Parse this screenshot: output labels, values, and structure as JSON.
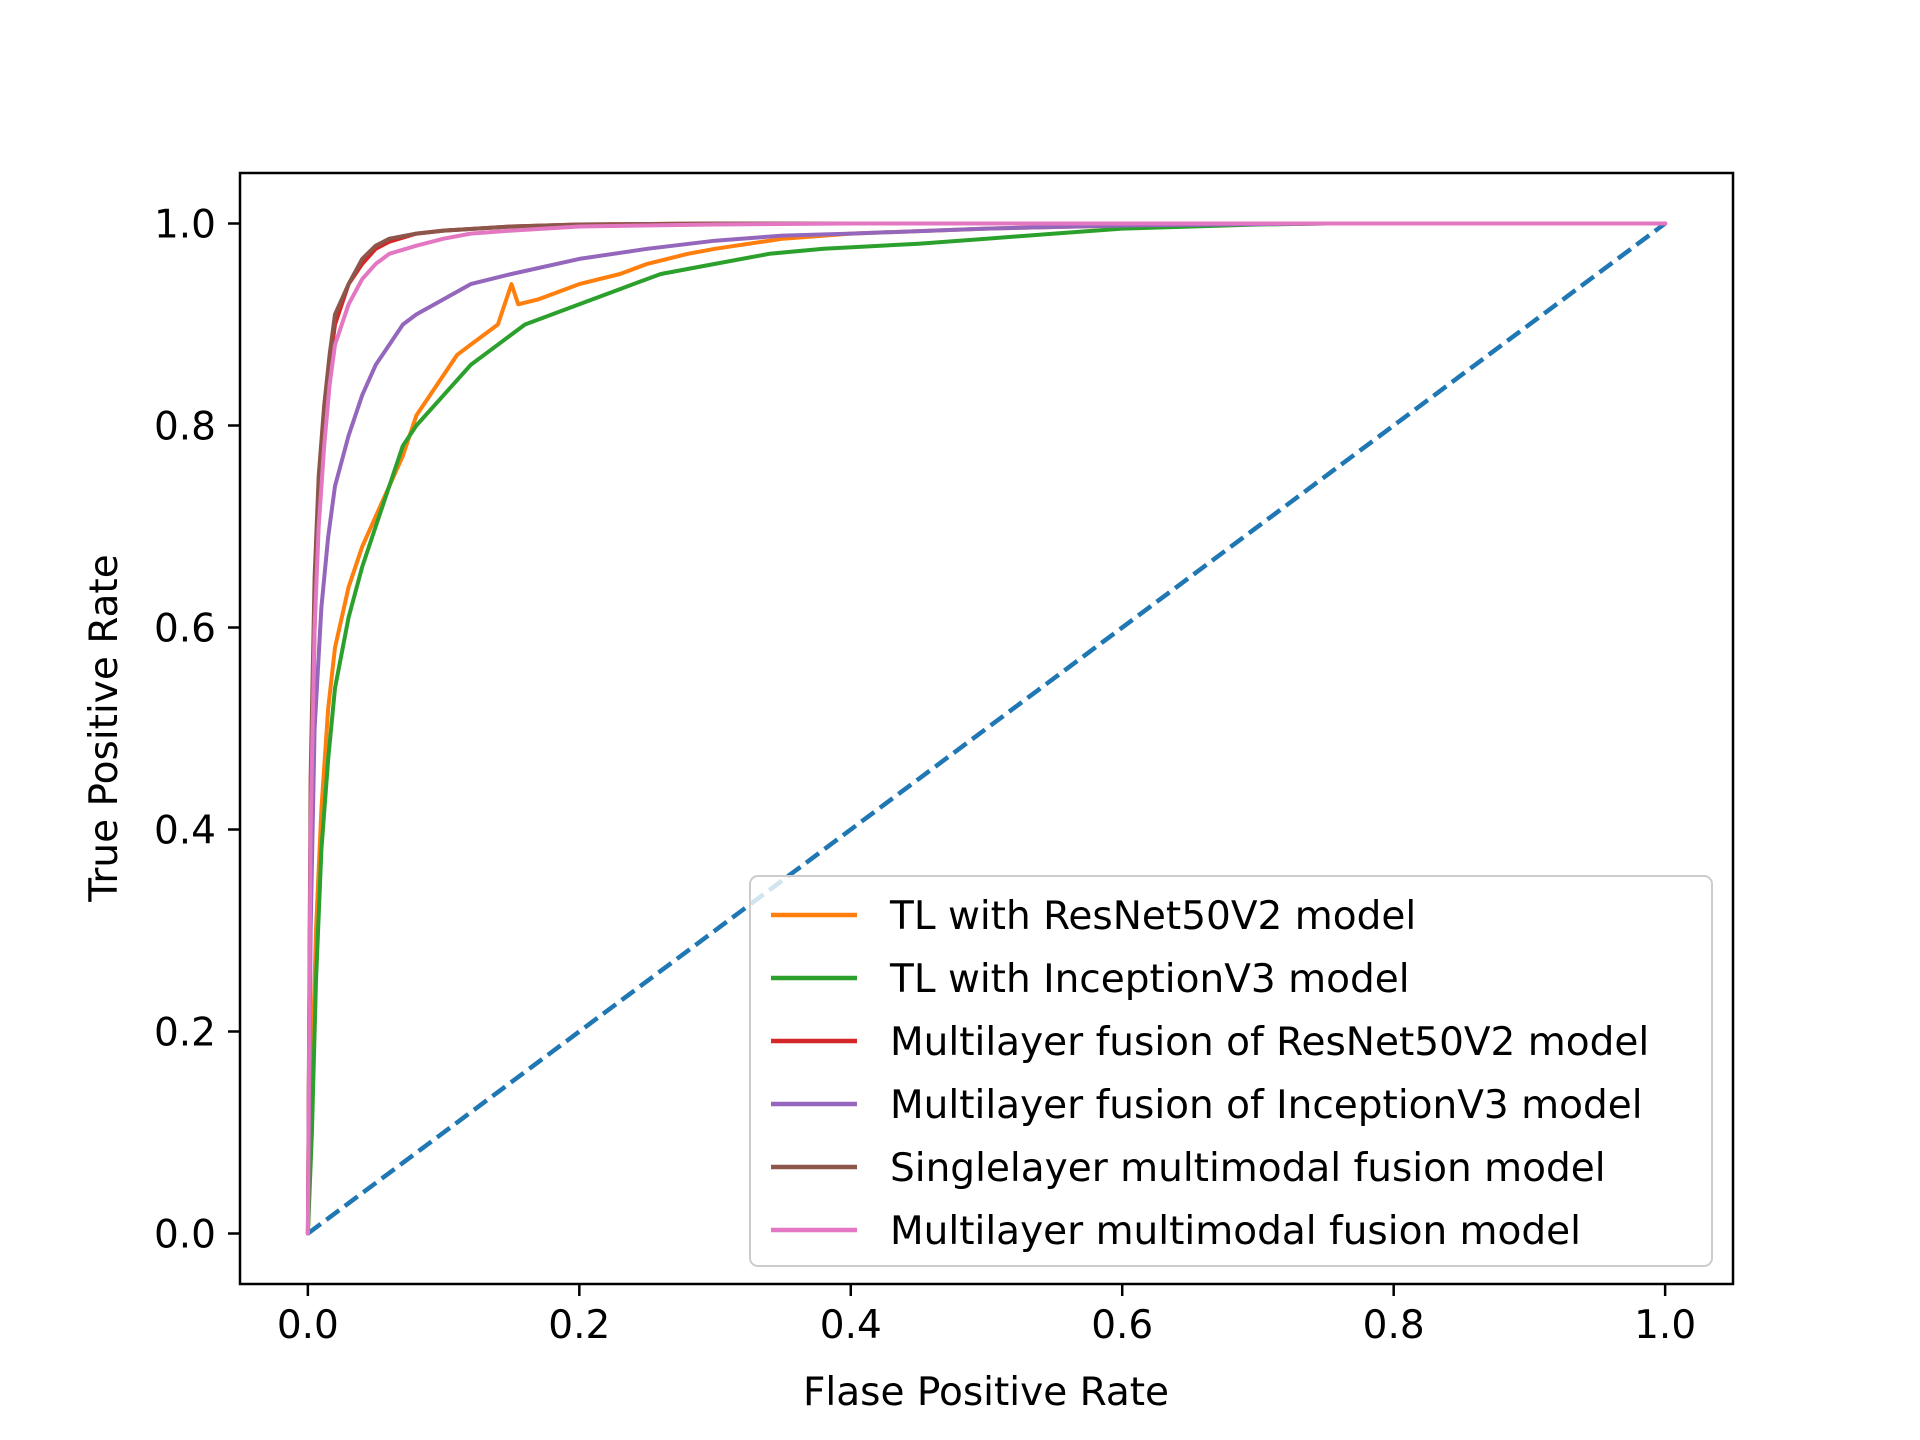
{
  "chart_data": {
    "type": "line",
    "title": "",
    "xlabel": "Flase Positive Rate",
    "ylabel": "True Positive Rate",
    "xlim": [
      -0.05,
      1.05
    ],
    "ylim": [
      -0.05,
      1.05
    ],
    "x_ticks": [
      0.0,
      0.2,
      0.4,
      0.6,
      0.8,
      1.0
    ],
    "y_ticks": [
      0.0,
      0.2,
      0.4,
      0.6,
      0.8,
      1.0
    ],
    "x_tick_labels": [
      "0.0",
      "0.2",
      "0.4",
      "0.6",
      "0.8",
      "1.0"
    ],
    "y_tick_labels": [
      "0.0",
      "0.2",
      "0.4",
      "0.6",
      "0.8",
      "1.0"
    ],
    "grid": false,
    "legend_position": "lower-right",
    "series": [
      {
        "name": "TL with ResNet50V2 model",
        "color": "#ff7f0e",
        "style": "solid",
        "points": [
          [
            0,
            0
          ],
          [
            0.003,
            0.15
          ],
          [
            0.006,
            0.3
          ],
          [
            0.01,
            0.42
          ],
          [
            0.015,
            0.52
          ],
          [
            0.02,
            0.58
          ],
          [
            0.03,
            0.64
          ],
          [
            0.04,
            0.68
          ],
          [
            0.05,
            0.71
          ],
          [
            0.06,
            0.74
          ],
          [
            0.07,
            0.77
          ],
          [
            0.08,
            0.81
          ],
          [
            0.09,
            0.83
          ],
          [
            0.1,
            0.85
          ],
          [
            0.11,
            0.87
          ],
          [
            0.12,
            0.88
          ],
          [
            0.14,
            0.9
          ],
          [
            0.15,
            0.94
          ],
          [
            0.155,
            0.92
          ],
          [
            0.17,
            0.925
          ],
          [
            0.2,
            0.94
          ],
          [
            0.23,
            0.95
          ],
          [
            0.25,
            0.96
          ],
          [
            0.28,
            0.97
          ],
          [
            0.3,
            0.975
          ],
          [
            0.35,
            0.985
          ],
          [
            0.4,
            0.99
          ],
          [
            0.5,
            0.995
          ],
          [
            0.6,
            0.998
          ],
          [
            0.75,
            1.0
          ],
          [
            1.0,
            1.0
          ]
        ]
      },
      {
        "name": "TL with InceptionV3 model",
        "color": "#2ca02c",
        "style": "solid",
        "points": [
          [
            0,
            0
          ],
          [
            0.003,
            0.1
          ],
          [
            0.006,
            0.25
          ],
          [
            0.01,
            0.38
          ],
          [
            0.015,
            0.47
          ],
          [
            0.02,
            0.54
          ],
          [
            0.03,
            0.61
          ],
          [
            0.04,
            0.66
          ],
          [
            0.05,
            0.7
          ],
          [
            0.06,
            0.74
          ],
          [
            0.07,
            0.78
          ],
          [
            0.08,
            0.8
          ],
          [
            0.1,
            0.83
          ],
          [
            0.12,
            0.86
          ],
          [
            0.14,
            0.88
          ],
          [
            0.16,
            0.9
          ],
          [
            0.18,
            0.91
          ],
          [
            0.2,
            0.92
          ],
          [
            0.23,
            0.935
          ],
          [
            0.26,
            0.95
          ],
          [
            0.3,
            0.96
          ],
          [
            0.34,
            0.97
          ],
          [
            0.38,
            0.975
          ],
          [
            0.45,
            0.98
          ],
          [
            0.5,
            0.985
          ],
          [
            0.55,
            0.99
          ],
          [
            0.6,
            0.995
          ],
          [
            0.7,
            0.999
          ],
          [
            0.75,
            1.0
          ],
          [
            1.0,
            1.0
          ]
        ]
      },
      {
        "name": "Multilayer fusion of ResNet50V2 model",
        "color": "#d62728",
        "style": "solid",
        "points": [
          [
            0,
            0
          ],
          [
            0.002,
            0.4
          ],
          [
            0.005,
            0.6
          ],
          [
            0.008,
            0.72
          ],
          [
            0.012,
            0.8
          ],
          [
            0.016,
            0.86
          ],
          [
            0.02,
            0.9
          ],
          [
            0.03,
            0.94
          ],
          [
            0.04,
            0.96
          ],
          [
            0.05,
            0.975
          ],
          [
            0.06,
            0.982
          ],
          [
            0.08,
            0.99
          ],
          [
            0.1,
            0.993
          ],
          [
            0.15,
            0.997
          ],
          [
            0.2,
            0.999
          ],
          [
            0.3,
            1.0
          ],
          [
            1.0,
            1.0
          ]
        ]
      },
      {
        "name": "Multilayer fusion of InceptionV3 model",
        "color": "#9467bd",
        "style": "solid",
        "points": [
          [
            0,
            0
          ],
          [
            0.002,
            0.3
          ],
          [
            0.005,
            0.5
          ],
          [
            0.01,
            0.62
          ],
          [
            0.015,
            0.69
          ],
          [
            0.02,
            0.74
          ],
          [
            0.03,
            0.79
          ],
          [
            0.04,
            0.83
          ],
          [
            0.05,
            0.86
          ],
          [
            0.06,
            0.88
          ],
          [
            0.07,
            0.9
          ],
          [
            0.08,
            0.91
          ],
          [
            0.1,
            0.925
          ],
          [
            0.12,
            0.94
          ],
          [
            0.15,
            0.95
          ],
          [
            0.2,
            0.965
          ],
          [
            0.25,
            0.975
          ],
          [
            0.3,
            0.983
          ],
          [
            0.35,
            0.988
          ],
          [
            0.4,
            0.99
          ],
          [
            0.5,
            0.995
          ],
          [
            0.6,
            0.998
          ],
          [
            0.75,
            1.0
          ],
          [
            1.0,
            1.0
          ]
        ]
      },
      {
        "name": "Singlelayer multimodal fusion model",
        "color": "#8c564b",
        "style": "solid",
        "points": [
          [
            0,
            0
          ],
          [
            0.002,
            0.45
          ],
          [
            0.005,
            0.65
          ],
          [
            0.008,
            0.75
          ],
          [
            0.012,
            0.82
          ],
          [
            0.016,
            0.87
          ],
          [
            0.02,
            0.91
          ],
          [
            0.03,
            0.94
          ],
          [
            0.04,
            0.965
          ],
          [
            0.05,
            0.978
          ],
          [
            0.06,
            0.985
          ],
          [
            0.08,
            0.99
          ],
          [
            0.1,
            0.993
          ],
          [
            0.15,
            0.997
          ],
          [
            0.2,
            0.999
          ],
          [
            0.3,
            1.0
          ],
          [
            1.0,
            1.0
          ]
        ]
      },
      {
        "name": "Multilayer multimodal fusion model",
        "color": "#e377c2",
        "style": "solid",
        "points": [
          [
            0,
            0
          ],
          [
            0.002,
            0.4
          ],
          [
            0.005,
            0.6
          ],
          [
            0.008,
            0.7
          ],
          [
            0.012,
            0.78
          ],
          [
            0.016,
            0.84
          ],
          [
            0.02,
            0.88
          ],
          [
            0.03,
            0.92
          ],
          [
            0.04,
            0.945
          ],
          [
            0.05,
            0.96
          ],
          [
            0.06,
            0.97
          ],
          [
            0.08,
            0.978
          ],
          [
            0.1,
            0.985
          ],
          [
            0.12,
            0.99
          ],
          [
            0.15,
            0.993
          ],
          [
            0.2,
            0.997
          ],
          [
            0.3,
            0.999
          ],
          [
            0.4,
            1.0
          ],
          [
            1.0,
            1.0
          ]
        ]
      },
      {
        "name": "",
        "color": "#1f77b4",
        "style": "dashed",
        "points": [
          [
            0,
            0
          ],
          [
            1,
            1
          ]
        ]
      }
    ]
  }
}
